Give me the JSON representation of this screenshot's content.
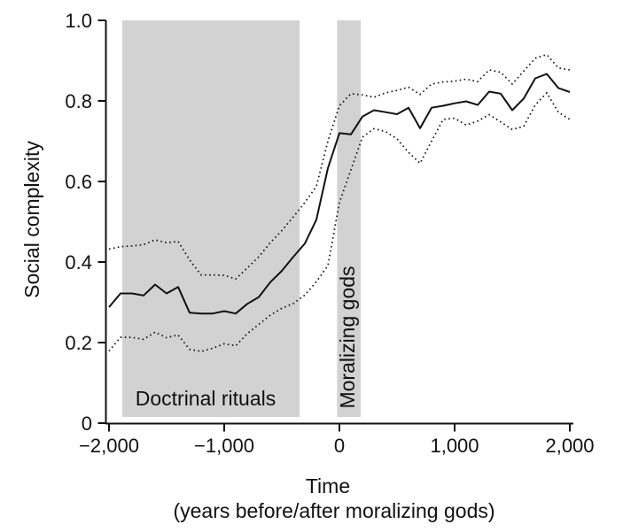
{
  "figure": {
    "background": "#ffffff",
    "band_color": "#d2d2d2",
    "line_color": "#111111",
    "ylabel": "Social complexity",
    "xlabel_line1": "Time",
    "xlabel_line2": "(years before/after moralizing gods)",
    "band1_label": "Doctrinal rituals",
    "band2_label": "Moralizing gods"
  },
  "chart_data": {
    "type": "line",
    "title": "",
    "xlabel": "Time (years before/after moralizing gods)",
    "ylabel": "Social complexity",
    "xlim": [
      -2000,
      2000
    ],
    "ylim": [
      0,
      1.0
    ],
    "grid": false,
    "legend": "none",
    "x_ticks": {
      "values": [
        -2000,
        -1000,
        0,
        1000,
        2000
      ],
      "labels": [
        "−2,000",
        "−1,000",
        "0",
        "1,000",
        "2,000"
      ]
    },
    "y_ticks": {
      "values": [
        0,
        0.2,
        0.4,
        0.6,
        0.8,
        1.0
      ],
      "labels": [
        "0",
        "0.2",
        "0.4",
        "0.6",
        "0.8",
        "1.0"
      ]
    },
    "bands": [
      {
        "label": "Doctrinal rituals",
        "x_start": -1885,
        "x_end": -345,
        "color": "#d2d2d2"
      },
      {
        "label": "Moralizing gods",
        "x_start": -20,
        "x_end": 185,
        "color": "#d2d2d2"
      }
    ],
    "x": [
      -2000,
      -1900,
      -1800,
      -1700,
      -1600,
      -1500,
      -1400,
      -1300,
      -1200,
      -1100,
      -1000,
      -900,
      -800,
      -700,
      -600,
      -500,
      -400,
      -300,
      -200,
      -100,
      0,
      100,
      200,
      300,
      400,
      500,
      600,
      700,
      800,
      900,
      1000,
      1100,
      1200,
      1300,
      1400,
      1500,
      1600,
      1700,
      1800,
      1900,
      2000
    ],
    "series": [
      {
        "name": "mean social complexity",
        "style": "solid",
        "values": [
          0.288,
          0.322,
          0.322,
          0.317,
          0.344,
          0.322,
          0.338,
          0.274,
          0.272,
          0.272,
          0.278,
          0.272,
          0.296,
          0.313,
          0.35,
          0.378,
          0.413,
          0.446,
          0.505,
          0.633,
          0.72,
          0.717,
          0.761,
          0.777,
          0.772,
          0.767,
          0.783,
          0.732,
          0.783,
          0.788,
          0.794,
          0.799,
          0.79,
          0.823,
          0.818,
          0.777,
          0.806,
          0.856,
          0.867,
          0.832,
          0.822
        ]
      },
      {
        "name": "upper confidence bound",
        "style": "dotted",
        "values": [
          0.432,
          0.438,
          0.44,
          0.443,
          0.455,
          0.448,
          0.451,
          0.405,
          0.368,
          0.368,
          0.367,
          0.358,
          0.385,
          0.413,
          0.448,
          0.478,
          0.512,
          0.548,
          0.588,
          0.7,
          0.788,
          0.818,
          0.815,
          0.809,
          0.82,
          0.826,
          0.834,
          0.816,
          0.842,
          0.847,
          0.849,
          0.854,
          0.848,
          0.877,
          0.871,
          0.842,
          0.874,
          0.906,
          0.915,
          0.882,
          0.877
        ]
      },
      {
        "name": "lower confidence bound",
        "style": "dotted",
        "values": [
          0.179,
          0.213,
          0.213,
          0.208,
          0.226,
          0.212,
          0.219,
          0.183,
          0.178,
          0.186,
          0.197,
          0.192,
          0.222,
          0.245,
          0.268,
          0.285,
          0.297,
          0.318,
          0.351,
          0.391,
          0.548,
          0.629,
          0.71,
          0.731,
          0.724,
          0.706,
          0.672,
          0.645,
          0.7,
          0.754,
          0.757,
          0.74,
          0.75,
          0.766,
          0.748,
          0.729,
          0.737,
          0.79,
          0.82,
          0.772,
          0.754
        ]
      }
    ]
  }
}
